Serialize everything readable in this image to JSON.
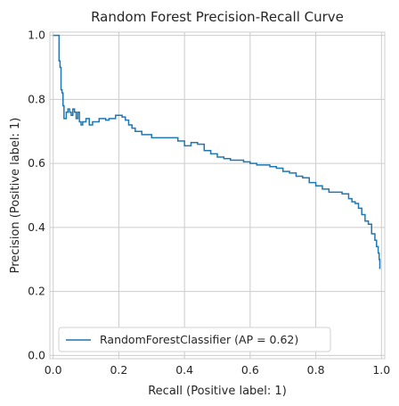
{
  "chart_data": {
    "type": "line",
    "title": "Random Forest Precision-Recall Curve",
    "xlabel": "Recall (Positive label: 1)",
    "ylabel": "Precision (Positive label: 1)",
    "xlim": [
      -0.01,
      1.01
    ],
    "ylim": [
      -0.01,
      1.01
    ],
    "xticks": [
      0.0,
      0.2,
      0.4,
      0.6,
      0.8,
      1.0
    ],
    "yticks": [
      0.0,
      0.2,
      0.4,
      0.6,
      0.8,
      1.0
    ],
    "xtick_labels": [
      "0.0",
      "0.2",
      "0.4",
      "0.6",
      "0.8",
      "1.0"
    ],
    "ytick_labels": [
      "0.0",
      "0.2",
      "0.4",
      "0.6",
      "0.8",
      "1.0"
    ],
    "grid": true,
    "legend_position": "lower-left",
    "legend_label": "RandomForestClassifier (AP = 0.62)",
    "series": [
      {
        "name": "RandomForestClassifier (AP = 0.62)",
        "color": "#1f77b4",
        "drawstyle": "steps-post",
        "x": [
          0.0,
          0.018,
          0.018,
          0.021,
          0.021,
          0.024,
          0.024,
          0.027,
          0.027,
          0.03,
          0.033,
          0.04,
          0.045,
          0.05,
          0.055,
          0.06,
          0.065,
          0.07,
          0.075,
          0.08,
          0.085,
          0.09,
          0.1,
          0.11,
          0.12,
          0.13,
          0.14,
          0.15,
          0.16,
          0.17,
          0.18,
          0.19,
          0.2,
          0.21,
          0.22,
          0.23,
          0.24,
          0.25,
          0.26,
          0.27,
          0.28,
          0.29,
          0.3,
          0.32,
          0.34,
          0.36,
          0.38,
          0.4,
          0.42,
          0.44,
          0.46,
          0.48,
          0.5,
          0.52,
          0.54,
          0.56,
          0.58,
          0.6,
          0.62,
          0.64,
          0.66,
          0.68,
          0.7,
          0.72,
          0.74,
          0.76,
          0.78,
          0.8,
          0.82,
          0.84,
          0.86,
          0.88,
          0.9,
          0.91,
          0.92,
          0.93,
          0.94,
          0.95,
          0.96,
          0.97,
          0.98,
          0.985,
          0.99,
          0.993,
          0.995
        ],
        "y": [
          1.0,
          1.0,
          0.92,
          0.92,
          0.9,
          0.9,
          0.83,
          0.83,
          0.82,
          0.78,
          0.74,
          0.76,
          0.77,
          0.76,
          0.75,
          0.77,
          0.76,
          0.74,
          0.76,
          0.73,
          0.72,
          0.73,
          0.74,
          0.72,
          0.73,
          0.73,
          0.74,
          0.74,
          0.735,
          0.74,
          0.74,
          0.75,
          0.75,
          0.745,
          0.735,
          0.72,
          0.71,
          0.7,
          0.7,
          0.69,
          0.69,
          0.69,
          0.68,
          0.68,
          0.68,
          0.68,
          0.67,
          0.655,
          0.665,
          0.66,
          0.64,
          0.63,
          0.62,
          0.615,
          0.61,
          0.61,
          0.605,
          0.6,
          0.595,
          0.595,
          0.59,
          0.585,
          0.575,
          0.57,
          0.56,
          0.555,
          0.54,
          0.53,
          0.52,
          0.51,
          0.51,
          0.505,
          0.49,
          0.48,
          0.475,
          0.46,
          0.44,
          0.42,
          0.41,
          0.38,
          0.36,
          0.34,
          0.32,
          0.3,
          0.27
        ]
      }
    ]
  }
}
